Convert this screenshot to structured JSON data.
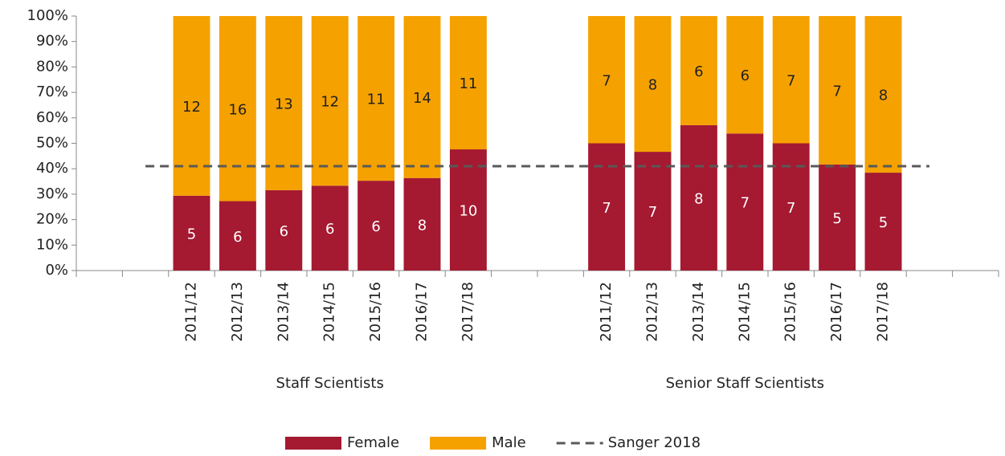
{
  "chart_data": {
    "type": "bar",
    "stacking": "percent",
    "categories": [
      null,
      null,
      "2011/12",
      "2012/13",
      "2013/14",
      "2014/15",
      "2015/16",
      "2016/17",
      "2017/18",
      null,
      null,
      "2011/12",
      "2012/13",
      "2013/14",
      "2014/15",
      "2015/16",
      "2016/17",
      "2017/18",
      null,
      null
    ],
    "groups": [
      "Staff Scientists",
      "Senior Staff Scientists"
    ],
    "series": [
      {
        "name": "Female",
        "color": "#a51931",
        "label_color": "#ffffff",
        "values": [
          null,
          null,
          5,
          6,
          6,
          6,
          6,
          8,
          10,
          null,
          null,
          7,
          7,
          8,
          7,
          7,
          5,
          5,
          null,
          null
        ]
      },
      {
        "name": "Male",
        "color": "#f5a100",
        "label_color": "#222222",
        "values": [
          null,
          null,
          12,
          16,
          13,
          12,
          11,
          14,
          11,
          null,
          null,
          7,
          8,
          6,
          6,
          7,
          7,
          8,
          null,
          null
        ]
      }
    ],
    "reference_line": {
      "name": "Sanger 2018",
      "value": 41,
      "color": "#595959",
      "style": "dashed"
    },
    "ylim": [
      0,
      100
    ],
    "yticks": [
      {
        "value": 0,
        "label": "0%"
      },
      {
        "value": 10,
        "label": "10%"
      },
      {
        "value": 20,
        "label": "20%"
      },
      {
        "value": 30,
        "label": "30%"
      },
      {
        "value": 40,
        "label": "40%"
      },
      {
        "value": 50,
        "label": "50%"
      },
      {
        "value": 60,
        "label": "60%"
      },
      {
        "value": 70,
        "label": "70%"
      },
      {
        "value": 80,
        "label": "80%"
      },
      {
        "value": 90,
        "label": "90%"
      },
      {
        "value": 100,
        "label": "100%"
      }
    ],
    "legend": "bottom"
  }
}
